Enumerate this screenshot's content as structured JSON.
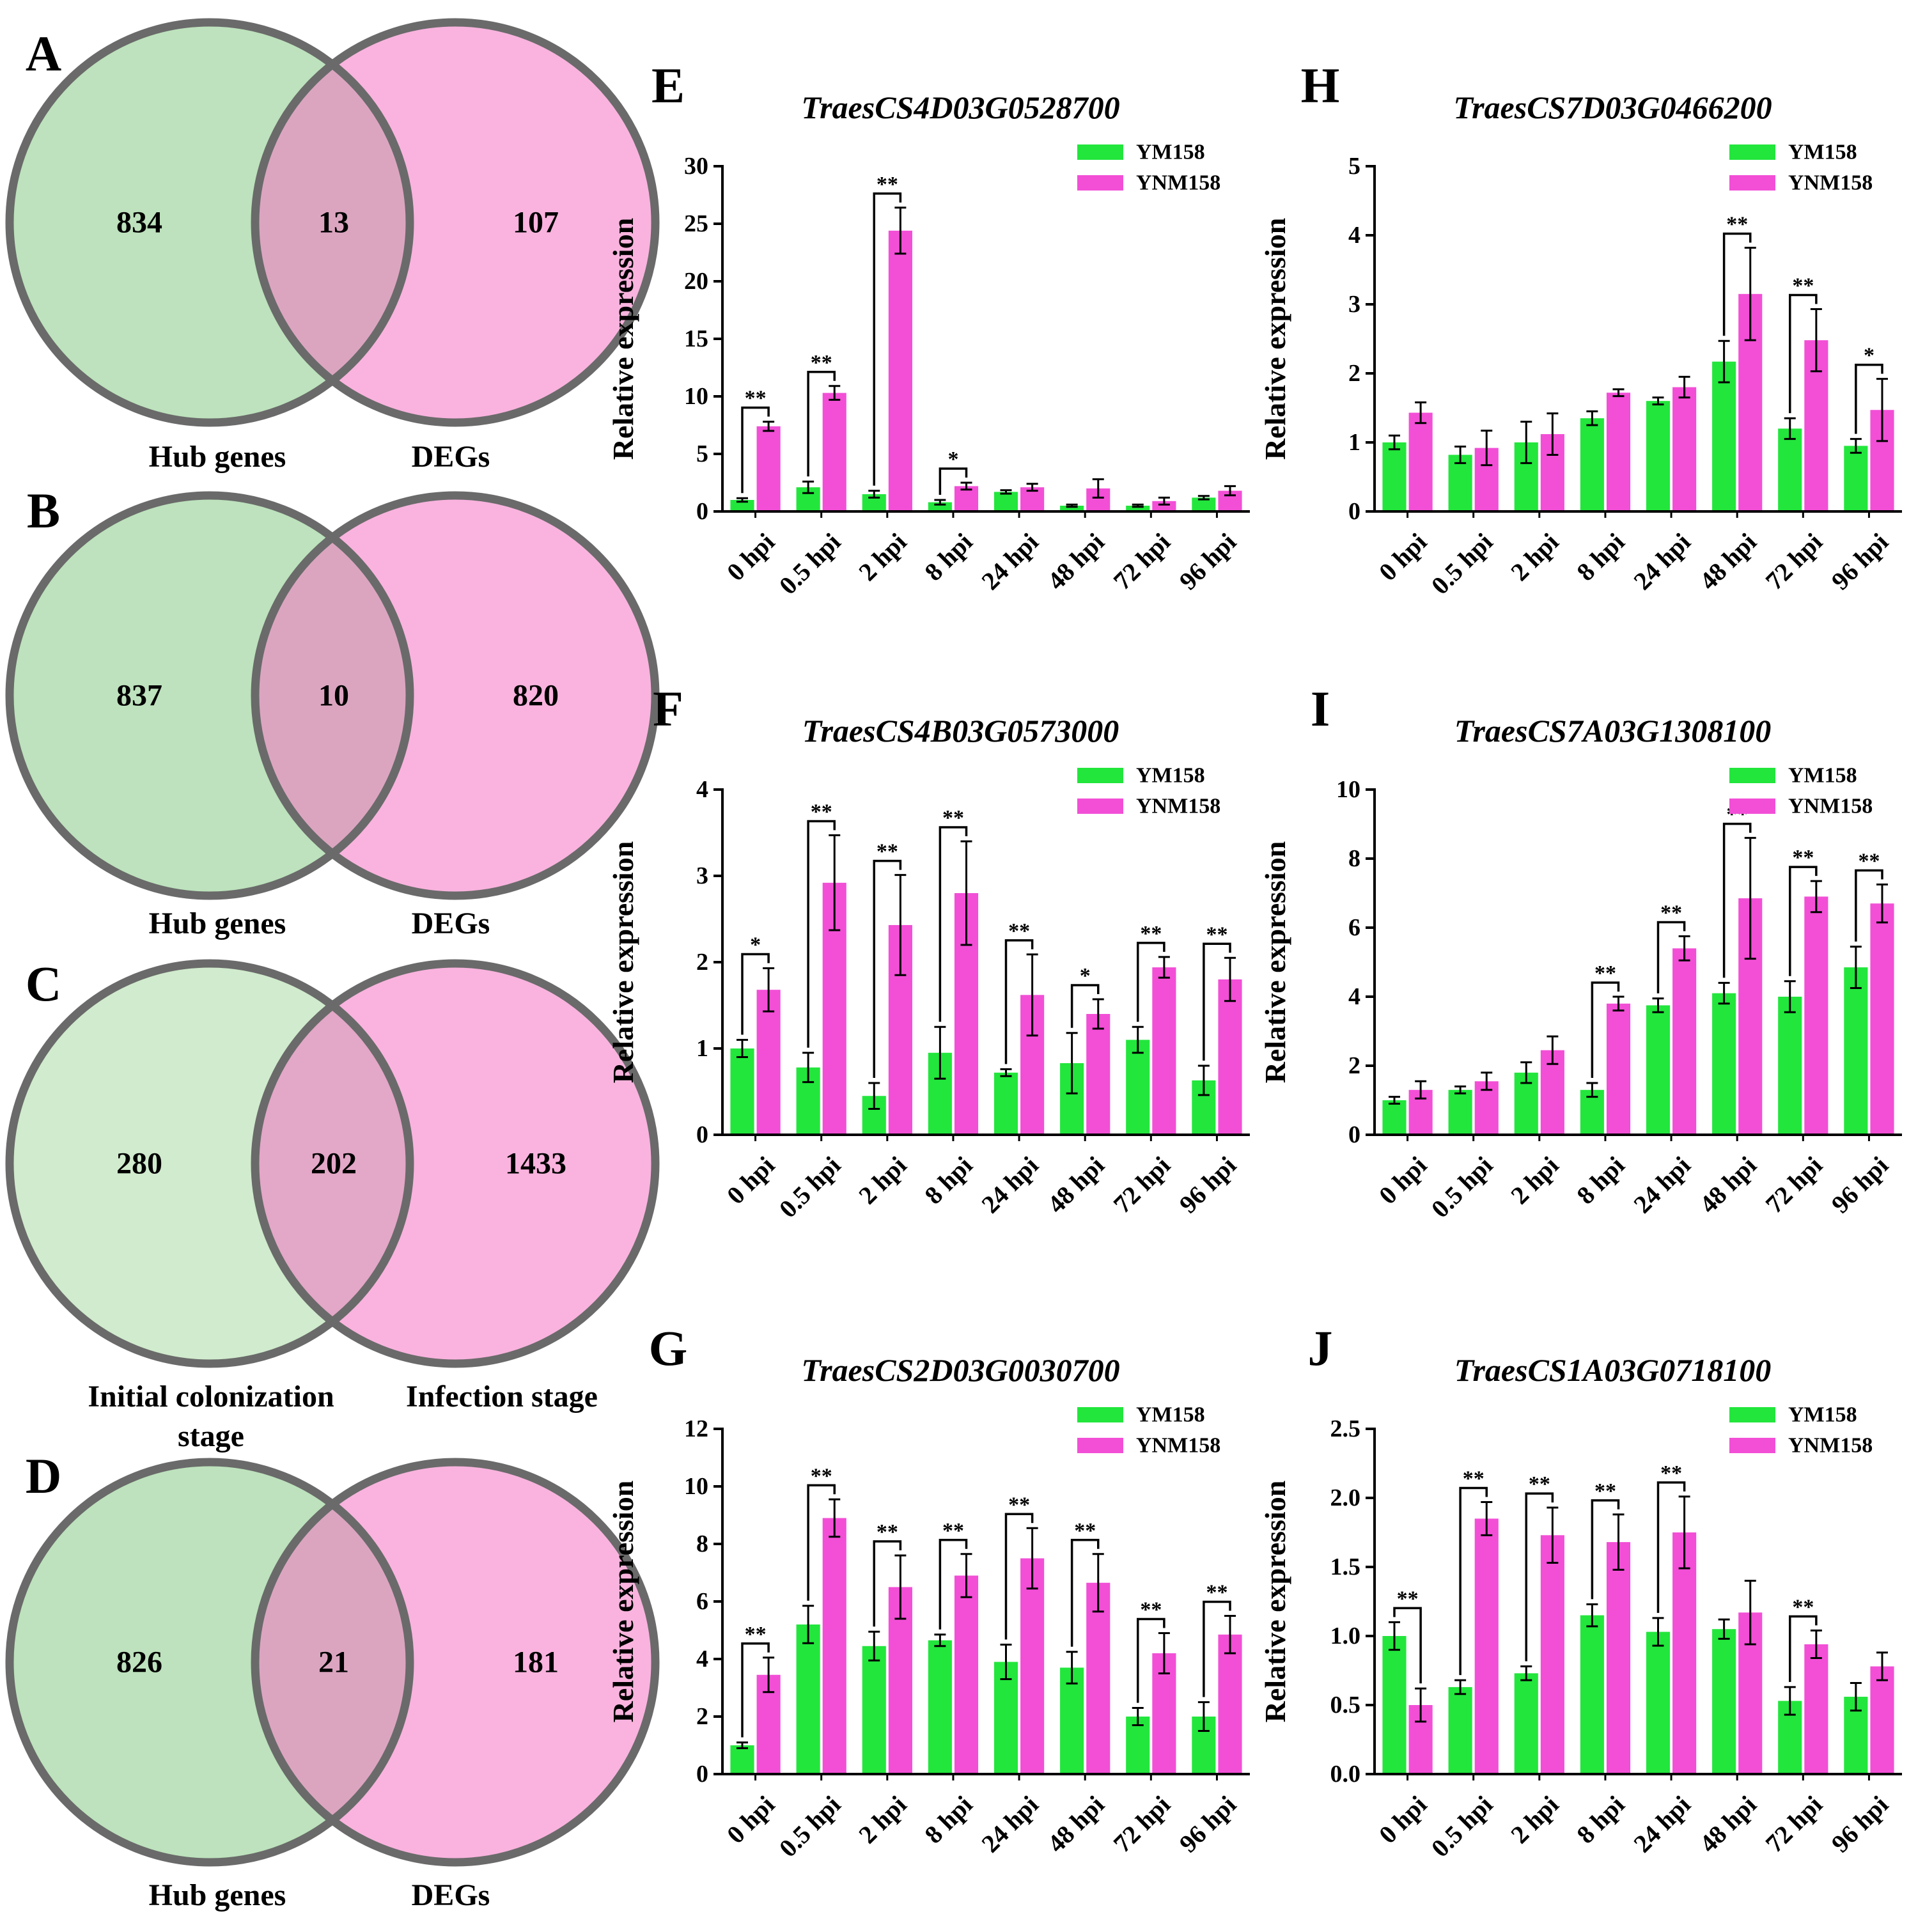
{
  "venns": [
    {
      "letter": "A",
      "left_value": "834",
      "overlap_value": "13",
      "right_value": "107",
      "left_label": "Hub genes",
      "right_label": "DEGs",
      "left_color": "#bde2bd",
      "right_color": "#f9b3de",
      "overlap_color": "#dba5c0"
    },
    {
      "letter": "B",
      "left_value": "837",
      "overlap_value": "10",
      "right_value": "820",
      "left_label": "Hub genes",
      "right_label": "DEGs",
      "left_color": "#bde2bd",
      "right_color": "#f9b3de",
      "overlap_color": "#dba5c0"
    },
    {
      "letter": "C",
      "left_value": "280",
      "overlap_value": "202",
      "right_value": "1433",
      "left_label": "Initial colonization",
      "left_label2": "stage",
      "right_label": "Infection stage",
      "left_color": "#d0ebcd",
      "right_color": "#f9b3de",
      "overlap_color": "#e3a7c7"
    },
    {
      "letter": "D",
      "left_value": "826",
      "overlap_value": "21",
      "right_value": "181",
      "left_label": "Hub genes",
      "right_label": "DEGs",
      "left_color": "#bde2bd",
      "right_color": "#f9b3de",
      "overlap_color": "#dba5c0"
    }
  ],
  "colors": {
    "ym": "#22e63c",
    "ynm": "#f24fd6",
    "outline": "#6a6a6a"
  },
  "chart_data": [
    {
      "type": "bar",
      "letter": "E",
      "title": "TraesCS4D03G0528700",
      "ylabel": "Relative expression",
      "categories": [
        "0 hpi",
        "0.5 hpi",
        "2 hpi",
        "8 hpi",
        "24 hpi",
        "48 hpi",
        "72 hpi",
        "96 hpi"
      ],
      "ylim": [
        0,
        30
      ],
      "ticks": [
        "0",
        "5",
        "10",
        "15",
        "20",
        "25",
        "30"
      ],
      "series": [
        {
          "name": "YM158",
          "values": [
            1.0,
            2.1,
            1.5,
            0.8,
            1.7,
            0.5,
            0.5,
            1.2
          ],
          "errors": [
            0.15,
            0.5,
            0.3,
            0.2,
            0.15,
            0.1,
            0.1,
            0.15
          ]
        },
        {
          "name": "YNM158",
          "values": [
            7.4,
            10.3,
            24.4,
            2.2,
            2.1,
            2.0,
            0.9,
            1.8
          ],
          "errors": [
            0.4,
            0.6,
            2.0,
            0.3,
            0.3,
            0.8,
            0.3,
            0.4
          ]
        }
      ],
      "significance": [
        "**",
        "**",
        "**",
        "*",
        "",
        "",
        "",
        ""
      ]
    },
    {
      "type": "bar",
      "letter": "F",
      "title": "TraesCS4B03G0573000",
      "ylabel": "Relative expression",
      "categories": [
        "0 hpi",
        "0.5 hpi",
        "2 hpi",
        "8 hpi",
        "24 hpi",
        "48 hpi",
        "72 hpi",
        "96 hpi"
      ],
      "ylim": [
        0,
        4
      ],
      "ticks": [
        "0",
        "1",
        "2",
        "3",
        "4"
      ],
      "series": [
        {
          "name": "YM158",
          "values": [
            1.0,
            0.78,
            0.45,
            0.95,
            0.72,
            0.83,
            1.1,
            0.63
          ],
          "errors": [
            0.1,
            0.17,
            0.15,
            0.3,
            0.04,
            0.35,
            0.15,
            0.17
          ]
        },
        {
          "name": "YNM158",
          "values": [
            1.68,
            2.92,
            2.43,
            2.8,
            1.62,
            1.4,
            1.94,
            1.8
          ],
          "errors": [
            0.25,
            0.55,
            0.58,
            0.6,
            0.47,
            0.17,
            0.12,
            0.25
          ]
        }
      ],
      "significance": [
        "*",
        "**",
        "**",
        "**",
        "**",
        "*",
        "**",
        "**"
      ]
    },
    {
      "type": "bar",
      "letter": "G",
      "title": "TraesCS2D03G0030700",
      "ylabel": "Relative expression",
      "categories": [
        "0 hpi",
        "0.5 hpi",
        "2 hpi",
        "8 hpi",
        "24 hpi",
        "48 hpi",
        "72 hpi",
        "96 hpi"
      ],
      "ylim": [
        0,
        12
      ],
      "ticks": [
        "0",
        "2",
        "4",
        "6",
        "8",
        "10",
        "12"
      ],
      "series": [
        {
          "name": "YM158",
          "values": [
            1.0,
            5.2,
            4.45,
            4.65,
            3.9,
            3.7,
            2.0,
            2.0
          ],
          "errors": [
            0.1,
            0.65,
            0.5,
            0.2,
            0.6,
            0.55,
            0.3,
            0.5
          ]
        },
        {
          "name": "YNM158",
          "values": [
            3.45,
            8.9,
            6.5,
            6.9,
            7.5,
            6.65,
            4.2,
            4.85
          ],
          "errors": [
            0.6,
            0.65,
            1.1,
            0.75,
            1.05,
            1.0,
            0.7,
            0.65
          ]
        }
      ],
      "significance": [
        "**",
        "**",
        "**",
        "**",
        "**",
        "**",
        "**",
        "**"
      ]
    },
    {
      "type": "bar",
      "letter": "H",
      "title": "TraesCS7D03G0466200",
      "ylabel": "Relative expression",
      "categories": [
        "0 hpi",
        "0.5 hpi",
        "2 hpi",
        "8 hpi",
        "24 hpi",
        "48 hpi",
        "72 hpi",
        "96 hpi"
      ],
      "ylim": [
        0,
        5
      ],
      "ticks": [
        "0",
        "1",
        "2",
        "3",
        "4",
        "5"
      ],
      "series": [
        {
          "name": "YM158",
          "values": [
            1.0,
            0.82,
            1.0,
            1.35,
            1.6,
            2.17,
            1.2,
            0.95
          ],
          "errors": [
            0.1,
            0.12,
            0.3,
            0.1,
            0.05,
            0.3,
            0.15,
            0.1
          ]
        },
        {
          "name": "YNM158",
          "values": [
            1.43,
            0.92,
            1.12,
            1.72,
            1.8,
            3.15,
            2.48,
            1.47
          ],
          "errors": [
            0.15,
            0.25,
            0.3,
            0.05,
            0.15,
            0.67,
            0.45,
            0.45
          ]
        }
      ],
      "significance": [
        "",
        "",
        "",
        "",
        "",
        "**",
        "**",
        "*"
      ]
    },
    {
      "type": "bar",
      "letter": "I",
      "title": "TraesCS7A03G1308100",
      "ylabel": "Relative expression",
      "categories": [
        "0 hpi",
        "0.5 hpi",
        "2 hpi",
        "8 hpi",
        "24 hpi",
        "48 hpi",
        "72 hpi",
        "96 hpi"
      ],
      "ylim": [
        0,
        10
      ],
      "ticks": [
        "0",
        "2",
        "4",
        "6",
        "8",
        "10"
      ],
      "series": [
        {
          "name": "YM158",
          "values": [
            1.0,
            1.3,
            1.8,
            1.3,
            3.75,
            4.1,
            4.0,
            4.85
          ],
          "errors": [
            0.1,
            0.1,
            0.3,
            0.2,
            0.2,
            0.3,
            0.45,
            0.6
          ]
        },
        {
          "name": "YNM158",
          "values": [
            1.3,
            1.55,
            2.45,
            3.8,
            5.4,
            6.85,
            6.9,
            6.7
          ],
          "errors": [
            0.25,
            0.25,
            0.4,
            0.2,
            0.35,
            1.75,
            0.45,
            0.55
          ]
        }
      ],
      "significance": [
        "",
        "",
        "",
        "**",
        "**",
        "**",
        "**",
        "**"
      ]
    },
    {
      "type": "bar",
      "letter": "J",
      "title": "TraesCS1A03G0718100",
      "ylabel": "Relative expression",
      "categories": [
        "0 hpi",
        "0.5 hpi",
        "2 hpi",
        "8 hpi",
        "24 hpi",
        "48 hpi",
        "72 hpi",
        "96 hpi"
      ],
      "ylim": [
        0,
        2.5
      ],
      "ticks": [
        "0.0",
        "0.5",
        "1.0",
        "1.5",
        "2.0",
        "2.5"
      ],
      "series": [
        {
          "name": "YM158",
          "values": [
            1.0,
            0.63,
            0.73,
            1.15,
            1.03,
            1.05,
            0.53,
            0.56
          ],
          "errors": [
            0.1,
            0.05,
            0.05,
            0.08,
            0.1,
            0.07,
            0.1,
            0.1
          ]
        },
        {
          "name": "YNM158",
          "values": [
            0.5,
            1.85,
            1.73,
            1.68,
            1.75,
            1.17,
            0.94,
            0.78
          ],
          "errors": [
            0.12,
            0.12,
            0.2,
            0.2,
            0.26,
            0.23,
            0.1,
            0.1
          ]
        }
      ],
      "significance": [
        "**",
        "**",
        "**",
        "**",
        "**",
        "",
        "**",
        ""
      ]
    }
  ]
}
